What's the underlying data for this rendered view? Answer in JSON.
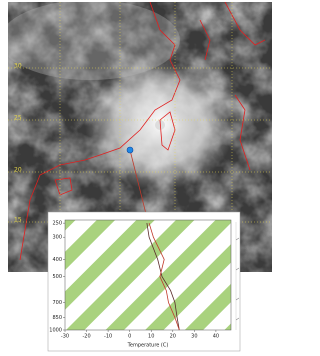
{
  "map": {
    "lat_labels": [
      "30",
      "25",
      "20",
      "15"
    ]
  },
  "chart_data": {
    "type": "line",
    "xlabel": "Temperature (C)",
    "pressure": [
      250,
      300,
      400,
      500,
      600,
      700,
      850,
      1000
    ],
    "series": [
      {
        "color": "#5a2a2a",
        "values": [
          8,
          9,
          13,
          15,
          19,
          21,
          22,
          23
        ]
      },
      {
        "color": "#c0392b",
        "values": [
          9,
          11,
          16,
          14,
          17,
          18,
          21,
          23
        ]
      }
    ],
    "xlim": [
      -30,
      47
    ],
    "xticks": [
      -30,
      -20,
      -10,
      0,
      10,
      20,
      30,
      40
    ],
    "ylim": [
      1000,
      240
    ],
    "yticks": [
      250,
      300,
      400,
      500,
      700,
      850,
      1000
    ],
    "log_y": true
  }
}
